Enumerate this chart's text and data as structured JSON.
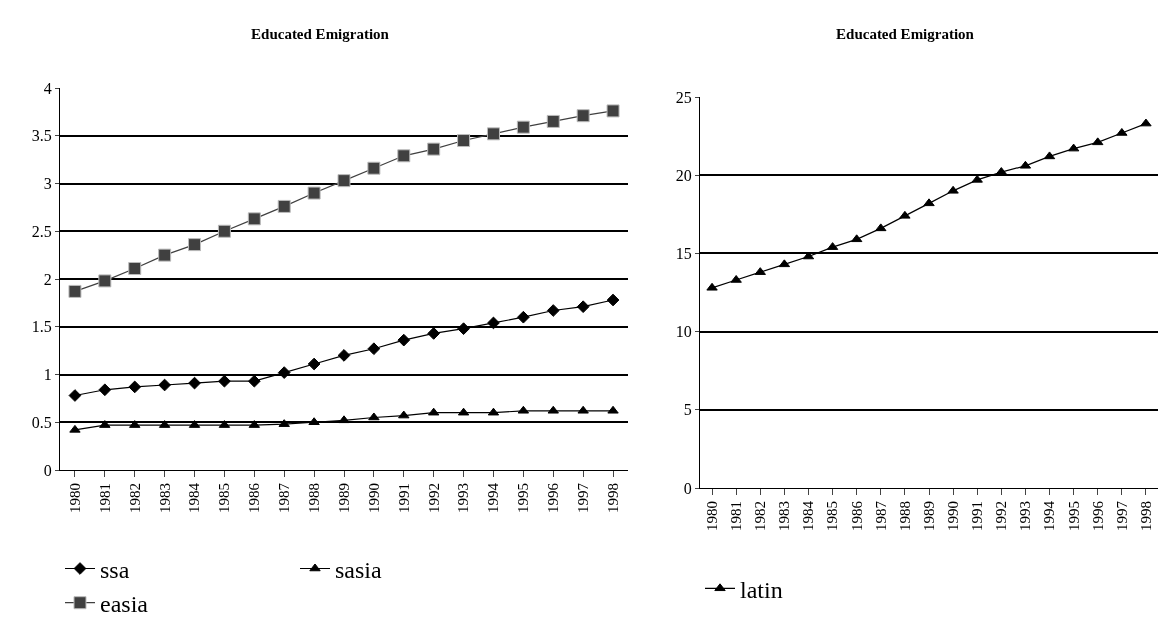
{
  "chart_data": [
    {
      "type": "line",
      "title": "Educated Emigration",
      "categories": [
        "1980",
        "1981",
        "1982",
        "1983",
        "1984",
        "1985",
        "1986",
        "1987",
        "1988",
        "1989",
        "1990",
        "1991",
        "1992",
        "1993",
        "1994",
        "1995",
        "1996",
        "1997",
        "1998"
      ],
      "series": [
        {
          "name": "ssa",
          "color": "#000000",
          "marker": "diamond",
          "values": [
            0.78,
            0.84,
            0.87,
            0.89,
            0.91,
            0.93,
            0.93,
            1.02,
            1.11,
            1.2,
            1.27,
            1.36,
            1.43,
            1.48,
            1.54,
            1.6,
            1.67,
            1.71,
            1.78
          ]
        },
        {
          "name": "sasia",
          "color": "#000000",
          "marker": "triangle",
          "values": [
            0.42,
            0.47,
            0.47,
            0.47,
            0.47,
            0.47,
            0.47,
            0.48,
            0.5,
            0.52,
            0.55,
            0.57,
            0.6,
            0.6,
            0.6,
            0.62,
            0.62,
            0.62,
            0.62
          ]
        },
        {
          "name": "easia",
          "color": "#404040",
          "marker": "square",
          "values": [
            1.87,
            1.98,
            2.11,
            2.25,
            2.36,
            2.5,
            2.63,
            2.76,
            2.9,
            3.03,
            3.16,
            3.29,
            3.36,
            3.45,
            3.52,
            3.59,
            3.65,
            3.71,
            3.76
          ]
        }
      ],
      "ylim": [
        0,
        4
      ],
      "yticks": [
        0,
        0.5,
        1,
        1.5,
        2,
        2.5,
        3,
        3.5,
        4
      ],
      "grid": "y",
      "legend": "bottom",
      "line_style": "solid"
    },
    {
      "type": "line",
      "title": "Educated Emigration",
      "categories": [
        "1980",
        "1981",
        "1982",
        "1983",
        "1984",
        "1985",
        "1986",
        "1987",
        "1988",
        "1989",
        "1990",
        "1991",
        "1992",
        "1993",
        "1994",
        "1995",
        "1996",
        "1997",
        "1998"
      ],
      "series": [
        {
          "name": "latin",
          "color": "#000000",
          "marker": "triangle",
          "values": [
            12.8,
            13.3,
            13.8,
            14.3,
            14.8,
            15.4,
            15.9,
            16.6,
            17.4,
            18.2,
            19.0,
            19.7,
            20.2,
            20.6,
            21.2,
            21.7,
            22.1,
            22.7,
            23.3
          ]
        }
      ],
      "ylim": [
        0,
        25
      ],
      "yticks": [
        0,
        5,
        10,
        15,
        20,
        25
      ],
      "grid": "y",
      "legend": "bottom",
      "line_style": "solid"
    }
  ]
}
